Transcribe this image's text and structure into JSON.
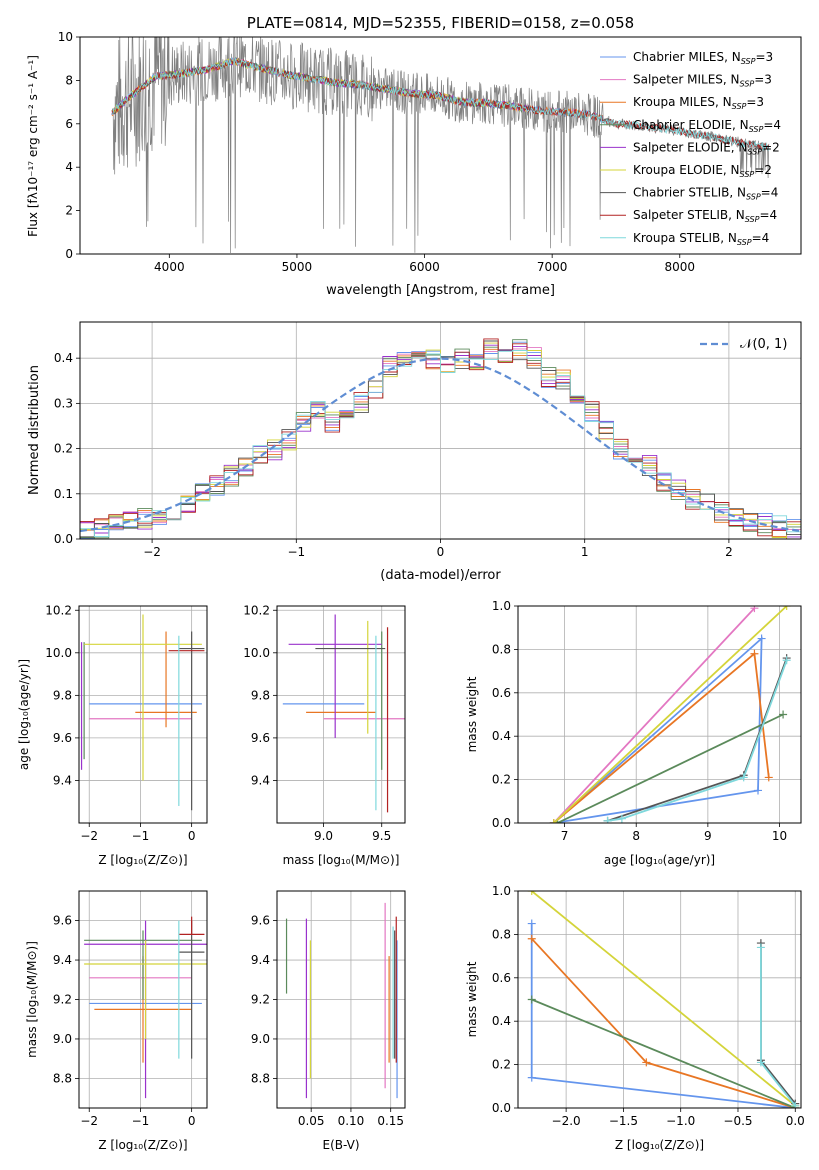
{
  "colors": {
    "spectrum": "#808080",
    "Chabrier MILES": "#6495ed",
    "Salpeter MILES": "#e377c2",
    "Kroupa MILES": "#e87624",
    "Chabrier ELODIE": "#5b8a5b",
    "Salpeter ELODIE": "#9932cc",
    "Kroupa ELODIE": "#d4d43a",
    "Chabrier STELIB": "#555555",
    "Salpeter STELIB": "#b22222",
    "Kroupa STELIB": "#7fd8dc",
    "gaussian": "#5f8dd3",
    "grid": "#b0b0b0"
  },
  "chart_data": [
    {
      "id": "spectrum",
      "type": "line",
      "title": "PLATE=0814, MJD=52355, FIBERID=0158, z=0.058",
      "xlabel": "wavelength [Angstrom, rest frame]",
      "ylabel": "Flux [fλ10⁻¹⁷ erg cm⁻² s⁻¹ A⁻¹]",
      "xlim": [
        3300,
        8950
      ],
      "ylim": [
        0,
        10
      ],
      "xticks": [
        "4000",
        "5000",
        "6000",
        "7000",
        "8000"
      ],
      "yticks": [
        "0",
        "2",
        "4",
        "6",
        "8",
        "10"
      ],
      "grid": false,
      "legend_position": "top-right",
      "legend": [
        {
          "name": "Chabrier MILES",
          "label": "Chabrier MILES, N",
          "sub": "SSP",
          "suffix": "=3",
          "range": [
            3550,
            7400
          ]
        },
        {
          "name": "Salpeter MILES",
          "label": "Salpeter MILES, N",
          "sub": "SSP",
          "suffix": "=3",
          "range": [
            3550,
            7400
          ]
        },
        {
          "name": "Kroupa MILES",
          "label": "Kroupa MILES, N",
          "sub": "SSP",
          "suffix": "=3",
          "range": [
            3550,
            7400
          ]
        },
        {
          "name": "Chabrier ELODIE",
          "label": "Chabrier ELODIE, N",
          "sub": "SSP",
          "suffix": "=4",
          "range": [
            3550,
            6800
          ]
        },
        {
          "name": "Salpeter ELODIE",
          "label": "Salpeter ELODIE, N",
          "sub": "SSP",
          "suffix": "=2",
          "range": [
            3550,
            6800
          ]
        },
        {
          "name": "Kroupa ELODIE",
          "label": "Kroupa ELODIE, N",
          "sub": "SSP",
          "suffix": "=2",
          "range": [
            3550,
            6800
          ]
        },
        {
          "name": "Chabrier STELIB",
          "label": "Chabrier STELIB, N",
          "sub": "SSP",
          "suffix": "=4",
          "range": [
            3550,
            8700
          ]
        },
        {
          "name": "Salpeter STELIB",
          "label": "Salpeter STELIB, N",
          "sub": "SSP",
          "suffix": "=4",
          "range": [
            3550,
            8700
          ]
        },
        {
          "name": "Kroupa STELIB",
          "label": "Kroupa STELIB, N",
          "sub": "SSP",
          "suffix": "=4",
          "range": [
            3550,
            8700
          ]
        }
      ],
      "continuum_points": [
        [
          3550,
          6.5
        ],
        [
          3700,
          7.3
        ],
        [
          3900,
          8.2
        ],
        [
          4100,
          8.3
        ],
        [
          4300,
          8.5
        ],
        [
          4500,
          8.9
        ],
        [
          4700,
          8.6
        ],
        [
          4900,
          8.3
        ],
        [
          5100,
          8.1
        ],
        [
          5300,
          7.9
        ],
        [
          5500,
          7.8
        ],
        [
          5700,
          7.6
        ],
        [
          5900,
          7.4
        ],
        [
          6100,
          7.3
        ],
        [
          6300,
          7.0
        ],
        [
          6500,
          6.95
        ],
        [
          6700,
          6.8
        ],
        [
          6900,
          6.6
        ],
        [
          7100,
          6.55
        ],
        [
          7300,
          6.4
        ],
        [
          7500,
          6.0
        ],
        [
          7700,
          5.9
        ],
        [
          7900,
          5.75
        ],
        [
          8100,
          5.55
        ],
        [
          8300,
          5.35
        ],
        [
          8500,
          5.1
        ],
        [
          8700,
          4.9
        ]
      ]
    },
    {
      "id": "residuals",
      "type": "histogram",
      "xlabel": "(data-model)/error",
      "ylabel": "Normed distribution",
      "xlim": [
        -2.5,
        2.5
      ],
      "ylim": [
        0,
        0.48
      ],
      "xticks": [
        "−2",
        "−1",
        "0",
        "1",
        "2"
      ],
      "yticks": [
        "0.0",
        "0.1",
        "0.2",
        "0.3",
        "0.4"
      ],
      "grid": true,
      "legend_position": "top-right",
      "legend": [
        {
          "name": "gaussian",
          "label": "𝒩(0, 1)"
        }
      ],
      "bin_edges_start": -2.5,
      "bin_width": 0.1,
      "base_profile": [
        0.018,
        0.022,
        0.035,
        0.04,
        0.045,
        0.055,
        0.065,
        0.08,
        0.1,
        0.115,
        0.14,
        0.16,
        0.19,
        0.2,
        0.22,
        0.255,
        0.29,
        0.26,
        0.28,
        0.3,
        0.33,
        0.38,
        0.4,
        0.4,
        0.4,
        0.39,
        0.4,
        0.395,
        0.42,
        0.41,
        0.42,
        0.4,
        0.36,
        0.35,
        0.3,
        0.28,
        0.24,
        0.2,
        0.18,
        0.16,
        0.13,
        0.11,
        0.09,
        0.075,
        0.06,
        0.05,
        0.04,
        0.032,
        0.028,
        0.022
      ]
    },
    {
      "id": "age-vs-Z",
      "type": "scatter",
      "xlabel": "Z [log₁₀(Z/Z⊙)]",
      "ylabel": "age  [log₁₀(age/yr)]",
      "xlim": [
        -2.2,
        0.3
      ],
      "ylim": [
        9.2,
        10.22
      ],
      "xticks": [
        "−2",
        "−1",
        "0"
      ],
      "yticks": [
        "9.4",
        "9.6",
        "9.8",
        "10.0",
        "10.2"
      ],
      "grid": true,
      "points": [
        {
          "series": "Chabrier MILES",
          "x": -0.9,
          "xerr": 1.1,
          "y": 9.76,
          "yerr": [
            9.76,
            9.76
          ]
        },
        {
          "series": "Salpeter MILES",
          "x": -1.0,
          "xerr": 1.0,
          "y": 9.69,
          "yerr": [
            9.69,
            9.69
          ]
        },
        {
          "series": "Kroupa MILES",
          "x": -0.5,
          "xerr": 0.6,
          "y": 9.72,
          "yerr": [
            9.65,
            10.1
          ]
        },
        {
          "series": "Chabrier ELODIE",
          "x": -2.1,
          "xerr": 0.0,
          "y": 9.75,
          "yerr": [
            9.5,
            10.05
          ]
        },
        {
          "series": "Salpeter ELODIE",
          "x": -2.15,
          "xerr": 0.0,
          "y": 9.75,
          "yerr": [
            9.45,
            10.05
          ]
        },
        {
          "series": "Kroupa ELODIE",
          "x": -0.95,
          "xerr": 1.15,
          "y": 10.04,
          "yerr": [
            9.4,
            10.18
          ]
        },
        {
          "series": "Chabrier STELIB",
          "x": 0.0,
          "xerr": 0.25,
          "y": 10.02,
          "yerr": [
            9.26,
            10.1
          ]
        },
        {
          "series": "Salpeter STELIB",
          "x": -0.1,
          "xerr": 0.35,
          "y": 10.01,
          "yerr": [
            10.01,
            10.01
          ]
        },
        {
          "series": "Kroupa STELIB",
          "x": -0.25,
          "xerr": 0.0,
          "y": 9.72,
          "yerr": [
            9.28,
            10.08
          ]
        }
      ]
    },
    {
      "id": "age-vs-mass",
      "type": "scatter",
      "xlabel": "mass [log₁₀(M/M⊙)]",
      "ylabel": "",
      "xlim": [
        8.6,
        9.7
      ],
      "ylim": [
        9.2,
        10.22
      ],
      "xticks": [
        "9.0",
        "9.5"
      ],
      "yticks": [
        "9.4",
        "9.6",
        "9.8",
        "10.0",
        "10.2"
      ],
      "grid": true,
      "points": [
        {
          "series": "Chabrier MILES",
          "x": 9.0,
          "xerr": 0.35,
          "y": 9.76,
          "yerr": [
            9.76,
            9.76
          ]
        },
        {
          "series": "Salpeter MILES",
          "x": 9.35,
          "xerr": 0.35,
          "y": 9.69,
          "yerr": [
            9.69,
            9.69
          ]
        },
        {
          "series": "Kroupa MILES",
          "x": 9.15,
          "xerr": 0.3,
          "y": 9.72,
          "yerr": [
            9.72,
            9.72
          ]
        },
        {
          "series": "Chabrier ELODIE",
          "x": 9.5,
          "xerr": 0.0,
          "y": 9.8,
          "yerr": [
            9.45,
            10.1
          ]
        },
        {
          "series": "Salpeter ELODIE",
          "x": 9.1,
          "xerr": 0.4,
          "y": 10.04,
          "yerr": [
            9.6,
            10.18
          ]
        },
        {
          "series": "Kroupa ELODIE",
          "x": 9.38,
          "xerr": 0.0,
          "y": 9.9,
          "yerr": [
            9.62,
            10.15
          ]
        },
        {
          "series": "Chabrier STELIB",
          "x": 9.23,
          "xerr": 0.3,
          "y": 10.02,
          "yerr": [
            10.02,
            10.02
          ]
        },
        {
          "series": "Salpeter STELIB",
          "x": 9.55,
          "xerr": 0.0,
          "y": 10.01,
          "yerr": [
            9.25,
            10.12
          ]
        },
        {
          "series": "Kroupa STELIB",
          "x": 9.45,
          "xerr": 0.0,
          "y": 9.8,
          "yerr": [
            9.26,
            10.08
          ]
        }
      ]
    },
    {
      "id": "weight-vs-age",
      "type": "line",
      "xlabel": "age  [log₁₀(age/yr)]",
      "ylabel": "mass weight",
      "xlim": [
        6.35,
        10.3
      ],
      "ylim": [
        0,
        1
      ],
      "xticks": [
        "7",
        "8",
        "9",
        "10"
      ],
      "yticks": [
        "0.0",
        "0.2",
        "0.4",
        "0.6",
        "0.8",
        "1.0"
      ],
      "grid": true,
      "series": [
        {
          "name": "Chabrier MILES",
          "points": [
            [
              6.85,
              0.0
            ],
            [
              9.7,
              0.15
            ],
            [
              9.75,
              0.85
            ],
            [
              6.85,
              0.0
            ]
          ]
        },
        {
          "name": "Salpeter MILES",
          "points": [
            [
              6.85,
              0.0
            ],
            [
              9.65,
              0.99
            ]
          ]
        },
        {
          "name": "Kroupa MILES",
          "points": [
            [
              6.85,
              0.0
            ],
            [
              9.65,
              0.78
            ],
            [
              9.85,
              0.21
            ]
          ]
        },
        {
          "name": "Chabrier ELODIE",
          "points": [
            [
              6.9,
              0.0
            ],
            [
              10.05,
              0.5
            ]
          ]
        },
        {
          "name": "Kroupa ELODIE",
          "points": [
            [
              6.85,
              0.0
            ],
            [
              10.1,
              1.0
            ]
          ]
        },
        {
          "name": "Chabrier STELIB",
          "points": [
            [
              7.6,
              0.01
            ],
            [
              9.5,
              0.22
            ],
            [
              10.1,
              0.76
            ]
          ]
        },
        {
          "name": "Kroupa STELIB",
          "points": [
            [
              7.6,
              0.01
            ],
            [
              7.8,
              0.02
            ],
            [
              9.5,
              0.21
            ],
            [
              10.1,
              0.75
            ]
          ]
        }
      ]
    },
    {
      "id": "mass-vs-Z",
      "type": "scatter",
      "xlabel": "Z [log₁₀(Z/Z⊙)]",
      "ylabel": "mass [log₁₀(M/M⊙)]",
      "xlim": [
        -2.2,
        0.3
      ],
      "ylim": [
        8.65,
        9.75
      ],
      "xticks": [
        "−2",
        "−1",
        "0"
      ],
      "yticks": [
        "8.8",
        "9.0",
        "9.2",
        "9.4",
        "9.6"
      ],
      "grid": true,
      "points": [
        {
          "series": "Chabrier MILES",
          "x": -0.9,
          "xerr": 1.1,
          "y": 9.18,
          "yerr": [
            9.18,
            9.18
          ]
        },
        {
          "series": "Salpeter MILES",
          "x": -1.0,
          "xerr": 1.0,
          "y": 9.31,
          "yerr": [
            9.31,
            9.31
          ]
        },
        {
          "series": "Kroupa MILES",
          "x": -0.95,
          "xerr": 0.95,
          "y": 9.15,
          "yerr": [
            8.88,
            9.42
          ]
        },
        {
          "series": "Chabrier ELODIE",
          "x": -0.95,
          "xerr": 1.15,
          "y": 9.5,
          "yerr": [
            9.2,
            9.55
          ]
        },
        {
          "series": "Salpeter ELODIE",
          "x": -0.9,
          "xerr": 1.2,
          "y": 9.48,
          "yerr": [
            8.7,
            9.6
          ]
        },
        {
          "series": "Kroupa ELODIE",
          "x": -0.9,
          "xerr": 1.2,
          "y": 9.38,
          "yerr": [
            9.0,
            9.5
          ]
        },
        {
          "series": "Chabrier STELIB",
          "x": 0.0,
          "xerr": 0.25,
          "y": 9.44,
          "yerr": [
            8.9,
            9.6
          ]
        },
        {
          "series": "Salpeter STELIB",
          "x": 0.0,
          "xerr": 0.25,
          "y": 9.53,
          "yerr": [
            9.53,
            9.62
          ]
        },
        {
          "series": "Kroupa STELIB",
          "x": -0.25,
          "xerr": 0.0,
          "y": 9.42,
          "yerr": [
            8.9,
            9.6
          ]
        }
      ]
    },
    {
      "id": "mass-vs-EBV",
      "type": "scatter",
      "xlabel": "E(B-V)",
      "ylabel": "",
      "xlim": [
        0.007,
        0.168
      ],
      "ylim": [
        8.65,
        9.75
      ],
      "xticks": [
        "0.05",
        "0.10",
        "0.15"
      ],
      "yticks": [
        "8.8",
        "9.0",
        "9.2",
        "9.4",
        "9.6"
      ],
      "grid": true,
      "points": [
        {
          "series": "Chabrier MILES",
          "x": 0.158,
          "xerr": 0.0,
          "y": 9.1,
          "yerr": [
            8.7,
            9.5
          ]
        },
        {
          "series": "Salpeter MILES",
          "x": 0.143,
          "xerr": 0.0,
          "y": 9.2,
          "yerr": [
            8.75,
            9.69
          ]
        },
        {
          "series": "Kroupa MILES",
          "x": 0.148,
          "xerr": 0.0,
          "y": 9.15,
          "yerr": [
            8.88,
            9.42
          ]
        },
        {
          "series": "Chabrier ELODIE",
          "x": 0.019,
          "xerr": 0.0,
          "y": 9.4,
          "yerr": [
            9.23,
            9.61
          ]
        },
        {
          "series": "Salpeter ELODIE",
          "x": 0.044,
          "xerr": 0.0,
          "y": 9.1,
          "yerr": [
            8.7,
            9.61
          ]
        },
        {
          "series": "Kroupa ELODIE",
          "x": 0.049,
          "xerr": 0.0,
          "y": 9.2,
          "yerr": [
            8.8,
            9.5
          ]
        },
        {
          "series": "Chabrier STELIB",
          "x": 0.155,
          "xerr": 0.0,
          "y": 9.2,
          "yerr": [
            8.9,
            9.55
          ]
        },
        {
          "series": "Salpeter STELIB",
          "x": 0.157,
          "xerr": 0.0,
          "y": 9.3,
          "yerr": [
            8.88,
            9.62
          ]
        },
        {
          "series": "Kroupa STELIB",
          "x": 0.153,
          "xerr": 0.0,
          "y": 9.25,
          "yerr": [
            8.9,
            9.57
          ]
        }
      ]
    },
    {
      "id": "weight-vs-Z",
      "type": "line",
      "xlabel": "Z [log₁₀(Z/Z⊙)]",
      "ylabel": "mass weight",
      "xlim": [
        -2.42,
        0.05
      ],
      "ylim": [
        0,
        1
      ],
      "xticks": [
        "−2.0",
        "−1.5",
        "−1.0",
        "−0.5",
        "0.0"
      ],
      "yticks": [
        "0.0",
        "0.2",
        "0.4",
        "0.6",
        "0.8",
        "1.0"
      ],
      "grid": true,
      "series": [
        {
          "name": "Chabrier MILES",
          "points": [
            [
              -2.3,
              0.85
            ],
            [
              -2.3,
              0.14
            ],
            [
              0.0,
              0.0
            ]
          ]
        },
        {
          "name": "Kroupa MILES",
          "points": [
            [
              -2.3,
              0.78
            ],
            [
              -1.3,
              0.21
            ],
            [
              0.0,
              0.0
            ]
          ]
        },
        {
          "name": "Chabrier ELODIE",
          "points": [
            [
              -2.3,
              0.5
            ],
            [
              0.0,
              0.0
            ]
          ]
        },
        {
          "name": "Kroupa ELODIE",
          "points": [
            [
              -2.3,
              1.0
            ],
            [
              0.0,
              0.01
            ]
          ]
        },
        {
          "name": "Chabrier STELIB",
          "points": [
            [
              -0.3,
              0.76
            ],
            [
              -0.3,
              0.22
            ],
            [
              0.0,
              0.02
            ]
          ]
        },
        {
          "name": "Kroupa STELIB",
          "points": [
            [
              -0.3,
              0.74
            ],
            [
              -0.3,
              0.21
            ],
            [
              0.0,
              0.01
            ]
          ]
        }
      ]
    }
  ]
}
